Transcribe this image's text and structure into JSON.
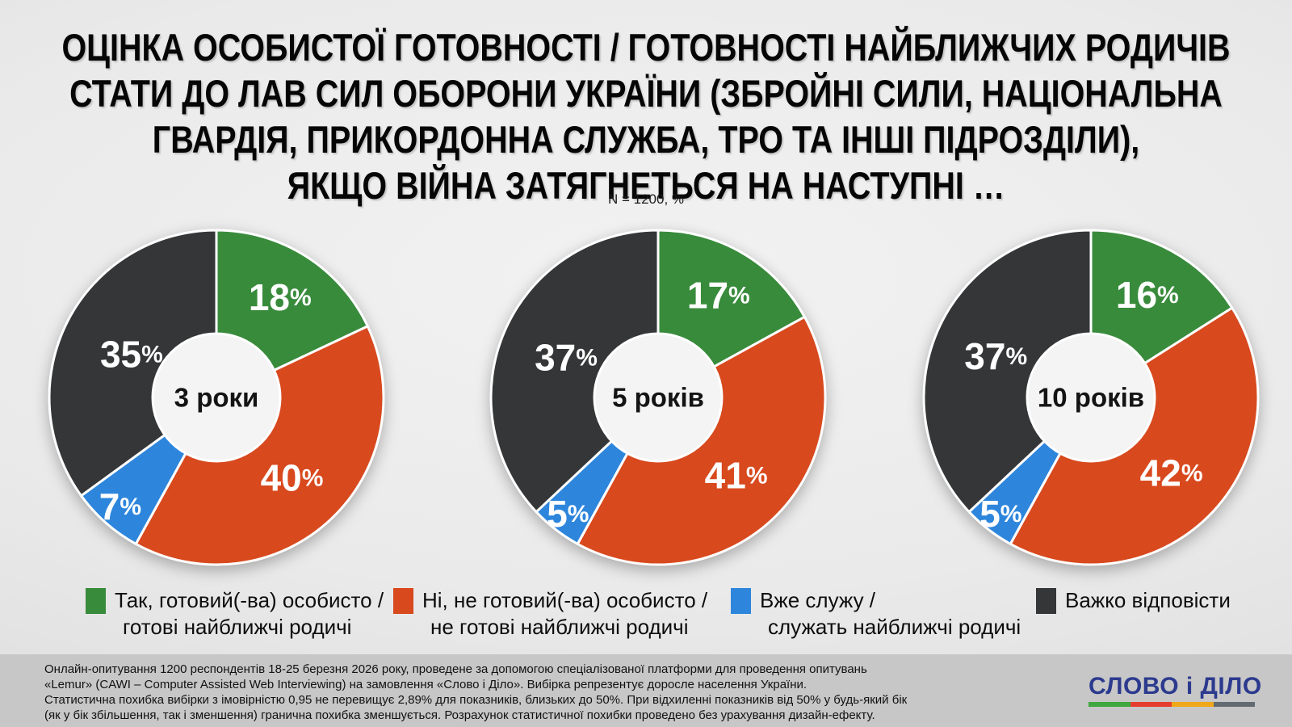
{
  "header": {
    "title_lines": [
      "ОЦІНКА ОСОБИСТОЇ ГОТОВНОСТІ / ГОТОВНОСТІ НАЙБЛИЖЧИХ РОДИЧІВ",
      "СТАТИ ДО ЛАВ СИЛ ОБОРОНИ УКРАЇНИ (ЗБРОЙНІ СИЛИ, НАЦІОНАЛЬНА",
      "ГВАРДІЯ, ПРИКОРДОННА СЛУЖБА, ТРО ТА ІНШІ ПІДРОЗДІЛИ),",
      "ЯКЩО ВІЙНА ЗАТЯГНЕТЬСЯ НА НАСТУПНІ …"
    ],
    "n_label": "N = 1200, %"
  },
  "chart_data": [
    {
      "type": "pie",
      "donut": true,
      "title": "3 роки",
      "categories": [
        "Так, готовий(-ва) особисто / готові найближчі родичі",
        "Ні, не готовий(-ва) особисто / не готові найближчі родичі",
        "Вже служу / служать найближчі родичі",
        "Важко відповісти"
      ],
      "values": [
        18,
        40,
        7,
        35
      ],
      "unit": "%",
      "colors": [
        "#398b3c",
        "#d8491e",
        "#2e86dc",
        "#343637"
      ],
      "start_angle_deg": 0,
      "clockwise": true,
      "label_radius": [
        0.71,
        0.66,
        0.87,
        0.57
      ]
    },
    {
      "type": "pie",
      "donut": true,
      "title": "5 років",
      "categories": [
        "Так, готовий(-ва) особисто / готові найближчі родичі",
        "Ні, не готовий(-ва) особисто / не готові найближчі родичі",
        "Вже служу / служать найближчі родичі",
        "Важко відповісти"
      ],
      "values": [
        17,
        41,
        5,
        37
      ],
      "unit": "%",
      "colors": [
        "#398b3c",
        "#d8491e",
        "#2e86dc",
        "#343637"
      ],
      "start_angle_deg": 0,
      "clockwise": true,
      "label_radius": [
        0.71,
        0.66,
        0.88,
        0.6
      ]
    },
    {
      "type": "pie",
      "donut": true,
      "title": "10 років",
      "categories": [
        "Так, готовий(-ва) особисто / готові найближчі родичі",
        "Ні, не готовий(-ва) особисто / не готові найближчі родичі",
        "Вже служу / служать найближчі родичі",
        "Важко відповісти"
      ],
      "values": [
        16,
        42,
        5,
        37
      ],
      "unit": "%",
      "colors": [
        "#398b3c",
        "#d8491e",
        "#2e86dc",
        "#343637"
      ],
      "start_angle_deg": 0,
      "clockwise": true,
      "label_radius": [
        0.7,
        0.66,
        0.88,
        0.62
      ]
    }
  ],
  "legend": {
    "items": [
      {
        "color": "#398b3c",
        "line1": "Так, готовий(-ва) особисто /",
        "line2": "готові найближчі родичі"
      },
      {
        "color": "#d8491e",
        "line1": "Ні, не готовий(-ва) особисто /",
        "line2": "не готові найближчі родичі"
      },
      {
        "color": "#2e86dc",
        "line1": "Вже служу /",
        "line2": "служать найближчі родичі"
      },
      {
        "color": "#343637",
        "line1": "Важко відповісти",
        "line2": ""
      }
    ]
  },
  "footer": {
    "lines": [
      "Онлайн-опитування 1200 респондентів 18-25 березня 2026 року, проведене за допомогою спеціалізованої платформи для проведення опитувань",
      "«Lemur» (CAWI – Computer Assisted Web Interviewing) на замовлення «Слово і Діло». Вибірка репрезентує доросле населення України.",
      "Статистична похибка вибірки з імовірністю 0,95 не перевищує 2,89% для показників, близьких до 50%. При відхиленні показників від 50% у будь-який бік",
      "(як у бік збільшення, так і зменшення) гранична похибка зменшується. Розрахунок статистичної похибки проведено без урахування дизайн-ефекту."
    ],
    "logo": {
      "text": "СЛОВО і ДІЛО",
      "underline_colors": [
        "#3ea73f",
        "#e63c2f",
        "#f0a818",
        "#636b72"
      ]
    }
  },
  "style": {
    "hole_fill": "#f4f4f4",
    "slice_stroke": "#ffffff"
  }
}
